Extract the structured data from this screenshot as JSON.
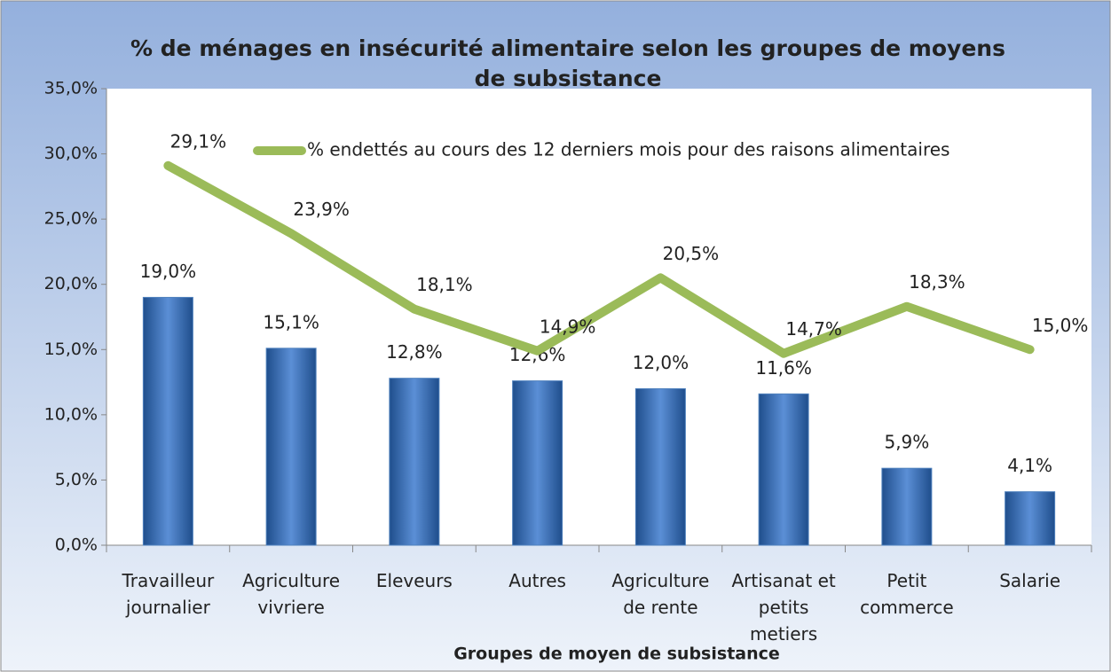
{
  "chart_data": {
    "type": "bar",
    "title": "% de ménages en insécurité alimentaire selon les groupes de moyens de subsistance",
    "x_label": "Groupes de moyen de subsistance",
    "categories": [
      "Travailleur journalier",
      "Agriculture vivriere",
      "Eleveurs",
      "Autres",
      "Agriculture de rente",
      "Artisanat et petits metiers",
      "Petit commerce",
      "Salarie"
    ],
    "series": [
      {
        "kind": "bar",
        "color": "#4f81bd",
        "values": [
          19.0,
          15.1,
          12.8,
          12.6,
          12.0,
          11.6,
          5.9,
          4.1
        ],
        "value_labels": [
          "19,0%",
          "15,1%",
          "12,8%",
          "12,6%",
          "12,0%",
          "11,6%",
          "5,9%",
          "4,1%"
        ]
      },
      {
        "kind": "line",
        "name": "% endettés au cours des 12 derniers mois pour des raisons alimentaires",
        "color": "#9bbb59",
        "values": [
          29.1,
          23.9,
          18.1,
          14.9,
          20.5,
          14.7,
          18.3,
          15.0
        ],
        "value_labels": [
          "29,1%",
          "23,9%",
          "18,1%",
          "14,9%",
          "20,5%",
          "14,7%",
          "18,3%",
          "15,0%"
        ]
      }
    ],
    "ylim": [
      0,
      35
    ],
    "yticks": [
      {
        "value": 0,
        "label": "0,0%"
      },
      {
        "value": 5,
        "label": "5,0%"
      },
      {
        "value": 10,
        "label": "10,0%"
      },
      {
        "value": 15,
        "label": "15,0%"
      },
      {
        "value": 20,
        "label": "20,0%"
      },
      {
        "value": 25,
        "label": "25,0%"
      },
      {
        "value": 30,
        "label": "30,0%"
      },
      {
        "value": 35,
        "label": "35,0%"
      }
    ],
    "legend": "top"
  }
}
